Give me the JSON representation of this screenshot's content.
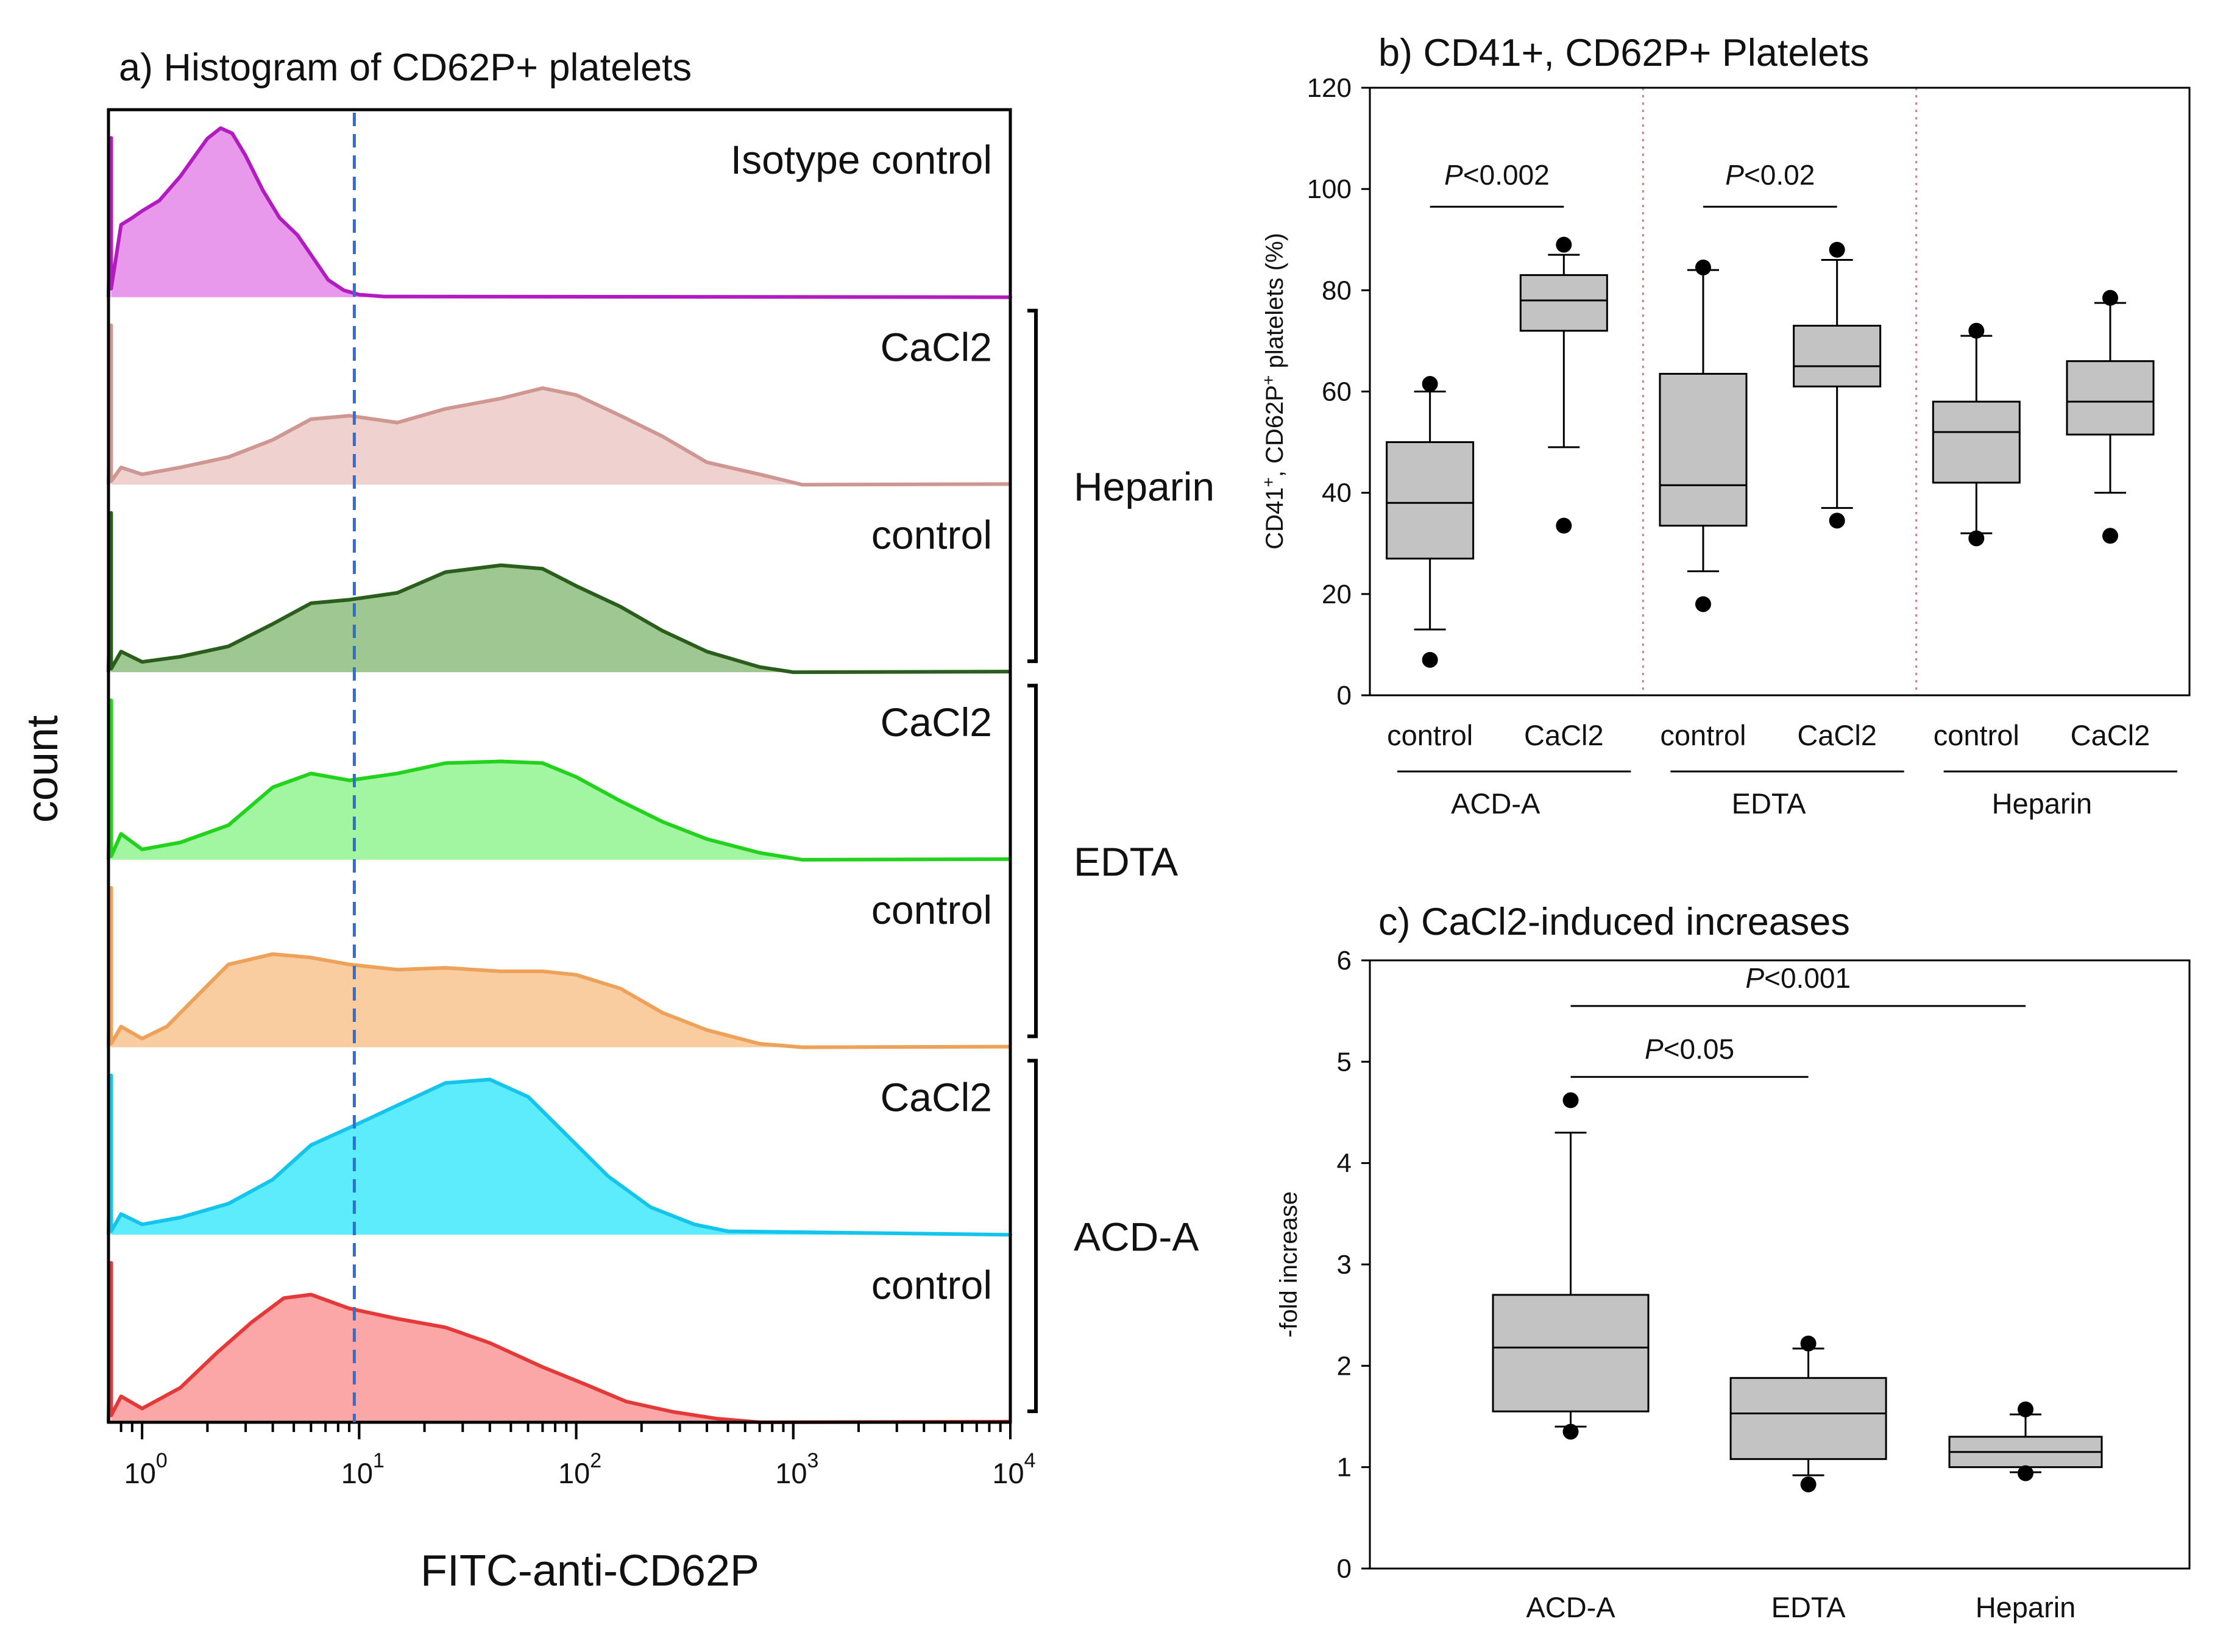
{
  "chart_data": [
    {
      "type": "histogram",
      "title": "a) Histogram of CD62P+ platelets",
      "xlabel": "FITC-anti-CD62P",
      "ylabel": "count",
      "xscale": "log",
      "xlim": [
        0.7,
        10000
      ],
      "x_tick_labels": [
        {
          "base": "10",
          "exp": "0"
        },
        {
          "base": "10",
          "exp": "1"
        },
        {
          "base": "10",
          "exp": "2"
        },
        {
          "base": "10",
          "exp": "3"
        },
        {
          "base": "10",
          "exp": "4"
        }
      ],
      "x_ticks": [
        1,
        10,
        100,
        1000,
        10000
      ],
      "gate": 9.5,
      "panels": [
        {
          "label": "Isotype control",
          "group": "",
          "fill": "#e999ec",
          "stroke": "#b21bc0",
          "points": [
            [
              0.72,
              0.05
            ],
            [
              0.8,
              0.42
            ],
            [
              0.9,
              0.46
            ],
            [
              1.0,
              0.5
            ],
            [
              1.2,
              0.56
            ],
            [
              1.5,
              0.7
            ],
            [
              1.8,
              0.84
            ],
            [
              2.0,
              0.92
            ],
            [
              2.3,
              0.98
            ],
            [
              2.6,
              0.95
            ],
            [
              3.0,
              0.82
            ],
            [
              3.6,
              0.62
            ],
            [
              4.3,
              0.46
            ],
            [
              5.2,
              0.36
            ],
            [
              6.2,
              0.22
            ],
            [
              7.2,
              0.1
            ],
            [
              8.5,
              0.04
            ],
            [
              10,
              0.015
            ],
            [
              13,
              0.004
            ],
            [
              10000,
              0.0
            ]
          ]
        },
        {
          "label": "CaCl2",
          "group": "Heparin",
          "fill": "#efd1cf",
          "stroke": "#cf9791",
          "points": [
            [
              0.72,
              0.02
            ],
            [
              0.8,
              0.1
            ],
            [
              1.0,
              0.06
            ],
            [
              1.5,
              0.1
            ],
            [
              2.5,
              0.16
            ],
            [
              4,
              0.26
            ],
            [
              6,
              0.38
            ],
            [
              9,
              0.4
            ],
            [
              15,
              0.36
            ],
            [
              25,
              0.44
            ],
            [
              45,
              0.5
            ],
            [
              70,
              0.56
            ],
            [
              100,
              0.52
            ],
            [
              160,
              0.4
            ],
            [
              250,
              0.28
            ],
            [
              400,
              0.13
            ],
            [
              700,
              0.06
            ],
            [
              1100,
              0.0
            ]
          ]
        },
        {
          "label": "control",
          "group": "",
          "fill": "#9fc791",
          "stroke": "#2b5e1c",
          "points": [
            [
              0.72,
              0.02
            ],
            [
              0.8,
              0.12
            ],
            [
              1.0,
              0.06
            ],
            [
              1.5,
              0.09
            ],
            [
              2.5,
              0.15
            ],
            [
              4,
              0.28
            ],
            [
              6,
              0.4
            ],
            [
              9,
              0.42
            ],
            [
              15,
              0.46
            ],
            [
              25,
              0.58
            ],
            [
              45,
              0.62
            ],
            [
              70,
              0.6
            ],
            [
              100,
              0.5
            ],
            [
              160,
              0.38
            ],
            [
              250,
              0.24
            ],
            [
              400,
              0.12
            ],
            [
              700,
              0.03
            ],
            [
              1000,
              0.0
            ]
          ]
        },
        {
          "label": "CaCl2",
          "group": "EDTA",
          "fill": "#a3f6a1",
          "stroke": "#22d21d",
          "points": [
            [
              0.72,
              0.02
            ],
            [
              0.8,
              0.15
            ],
            [
              1.0,
              0.06
            ],
            [
              1.5,
              0.1
            ],
            [
              2.5,
              0.2
            ],
            [
              4,
              0.42
            ],
            [
              6,
              0.5
            ],
            [
              9,
              0.46
            ],
            [
              15,
              0.5
            ],
            [
              25,
              0.56
            ],
            [
              45,
              0.57
            ],
            [
              70,
              0.56
            ],
            [
              100,
              0.48
            ],
            [
              160,
              0.34
            ],
            [
              250,
              0.22
            ],
            [
              400,
              0.12
            ],
            [
              700,
              0.04
            ],
            [
              1100,
              0.0
            ]
          ]
        },
        {
          "label": "control",
          "group": "",
          "fill": "#f9cda0",
          "stroke": "#eda159",
          "points": [
            [
              0.72,
              0.02
            ],
            [
              0.8,
              0.12
            ],
            [
              1.0,
              0.05
            ],
            [
              1.3,
              0.12
            ],
            [
              1.8,
              0.3
            ],
            [
              2.5,
              0.48
            ],
            [
              4,
              0.54
            ],
            [
              6,
              0.52
            ],
            [
              9,
              0.48
            ],
            [
              15,
              0.45
            ],
            [
              25,
              0.46
            ],
            [
              45,
              0.44
            ],
            [
              70,
              0.44
            ],
            [
              100,
              0.42
            ],
            [
              160,
              0.34
            ],
            [
              250,
              0.2
            ],
            [
              400,
              0.1
            ],
            [
              700,
              0.02
            ],
            [
              1100,
              0.0
            ]
          ]
        },
        {
          "label": "CaCl2",
          "group": "ACD-A",
          "fill": "#5cecfc",
          "stroke": "#14c4ea",
          "points": [
            [
              0.72,
              0.02
            ],
            [
              0.8,
              0.12
            ],
            [
              1.0,
              0.06
            ],
            [
              1.5,
              0.1
            ],
            [
              2.5,
              0.18
            ],
            [
              4,
              0.32
            ],
            [
              6,
              0.52
            ],
            [
              9,
              0.62
            ],
            [
              15,
              0.75
            ],
            [
              25,
              0.88
            ],
            [
              40,
              0.9
            ],
            [
              60,
              0.8
            ],
            [
              90,
              0.58
            ],
            [
              140,
              0.34
            ],
            [
              220,
              0.16
            ],
            [
              350,
              0.06
            ],
            [
              500,
              0.02
            ],
            [
              10000,
              0.0
            ]
          ]
        },
        {
          "label": "control",
          "group": "",
          "fill": "#fba7a7",
          "stroke": "#e43939",
          "points": [
            [
              0.72,
              0.04
            ],
            [
              0.8,
              0.15
            ],
            [
              1.0,
              0.08
            ],
            [
              1.5,
              0.2
            ],
            [
              2.2,
              0.4
            ],
            [
              3.2,
              0.58
            ],
            [
              4.5,
              0.72
            ],
            [
              6,
              0.74
            ],
            [
              9,
              0.66
            ],
            [
              15,
              0.6
            ],
            [
              25,
              0.55
            ],
            [
              40,
              0.46
            ],
            [
              70,
              0.32
            ],
            [
              110,
              0.22
            ],
            [
              170,
              0.12
            ],
            [
              280,
              0.06
            ],
            [
              450,
              0.02
            ],
            [
              700,
              0.0
            ]
          ]
        }
      ]
    },
    {
      "type": "box",
      "title": "b) CD41+, CD62P+ Platelets",
      "ylabel": "CD41+, CD62P+ platelets (%)",
      "ylim": [
        0,
        120
      ],
      "yticks": [
        0,
        20,
        40,
        60,
        80,
        100,
        120
      ],
      "groups": [
        {
          "name": "ACD-A",
          "boxes": [
            {
              "label": "control",
              "q1": 27,
              "median": 38,
              "q3": 50,
              "whisker_low": 13,
              "whisker_high": 60,
              "outliers": [
                7,
                61.5
              ]
            },
            {
              "label": "CaCl2",
              "q1": 72,
              "median": 78,
              "q3": 83,
              "whisker_low": 49,
              "whisker_high": 87,
              "outliers": [
                33.5,
                89
              ]
            }
          ]
        },
        {
          "name": "EDTA",
          "boxes": [
            {
              "label": "control",
              "q1": 33.5,
              "median": 41.5,
              "q3": 63.5,
              "whisker_low": 24.5,
              "whisker_high": 84,
              "outliers": [
                18,
                84.5
              ]
            },
            {
              "label": "CaCl2",
              "q1": 61,
              "median": 65,
              "q3": 73,
              "whisker_low": 37,
              "whisker_high": 86,
              "outliers": [
                34.5,
                88
              ]
            }
          ]
        },
        {
          "name": "Heparin",
          "boxes": [
            {
              "label": "control",
              "q1": 42,
              "median": 52,
              "q3": 58,
              "whisker_low": 32,
              "whisker_high": 71,
              "outliers": [
                31,
                72
              ]
            },
            {
              "label": "CaCl2",
              "q1": 51.5,
              "median": 58,
              "q3": 66,
              "whisker_low": 40,
              "whisker_high": 77.5,
              "outliers": [
                31.5,
                78.5
              ]
            }
          ]
        }
      ],
      "annotations": [
        {
          "italic": "P",
          "text": "<0.002",
          "group": "ACD-A"
        },
        {
          "italic": "P",
          "text": "<0.02",
          "group": "EDTA"
        }
      ]
    },
    {
      "type": "box",
      "title": "c) CaCl2-induced increases",
      "ylabel": "-fold increase",
      "ylim": [
        0,
        6
      ],
      "yticks": [
        0,
        1,
        2,
        3,
        4,
        5,
        6
      ],
      "categories": [
        "ACD-A",
        "EDTA",
        "Heparin"
      ],
      "boxes": [
        {
          "label": "ACD-A",
          "q1": 1.55,
          "median": 2.18,
          "q3": 2.7,
          "whisker_low": 1.4,
          "whisker_high": 4.3,
          "outliers": [
            1.35,
            4.62
          ]
        },
        {
          "label": "EDTA",
          "q1": 1.08,
          "median": 1.53,
          "q3": 1.88,
          "whisker_low": 0.92,
          "whisker_high": 2.17,
          "outliers": [
            0.83,
            2.22
          ]
        },
        {
          "label": "Heparin",
          "q1": 1.0,
          "median": 1.15,
          "q3": 1.3,
          "whisker_low": 0.95,
          "whisker_high": 1.52,
          "outliers": [
            0.94,
            1.57
          ]
        }
      ],
      "annotations": [
        {
          "italic": "P",
          "text": "<0.05",
          "from": "ACD-A",
          "to": "EDTA"
        },
        {
          "italic": "P",
          "text": "<0.001",
          "from": "ACD-A",
          "to": "Heparin"
        }
      ]
    }
  ]
}
